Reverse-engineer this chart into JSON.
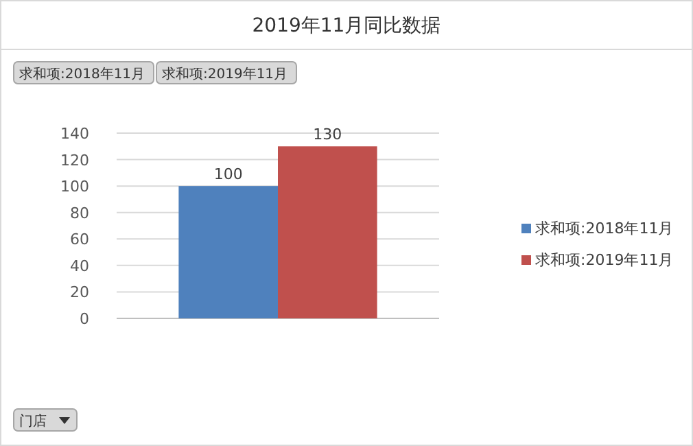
{
  "chart_data": {
    "type": "bar",
    "title": "2019年11月同比数据",
    "categories": [
      null
    ],
    "series": [
      {
        "name": "求和项:2018年11月",
        "color": "#4f81bd",
        "values": [
          100
        ]
      },
      {
        "name": "求和项:2019年11月",
        "color": "#c0504d",
        "values": [
          130
        ]
      }
    ],
    "ylim": [
      0,
      140
    ],
    "yticks": [
      0,
      20,
      40,
      60,
      80,
      100,
      120,
      140
    ],
    "grid": "y",
    "legend": "right",
    "data_labels": true,
    "annotations": [
      "求和项:2018年11月",
      "求和项:2019年11月",
      "门店"
    ]
  }
}
